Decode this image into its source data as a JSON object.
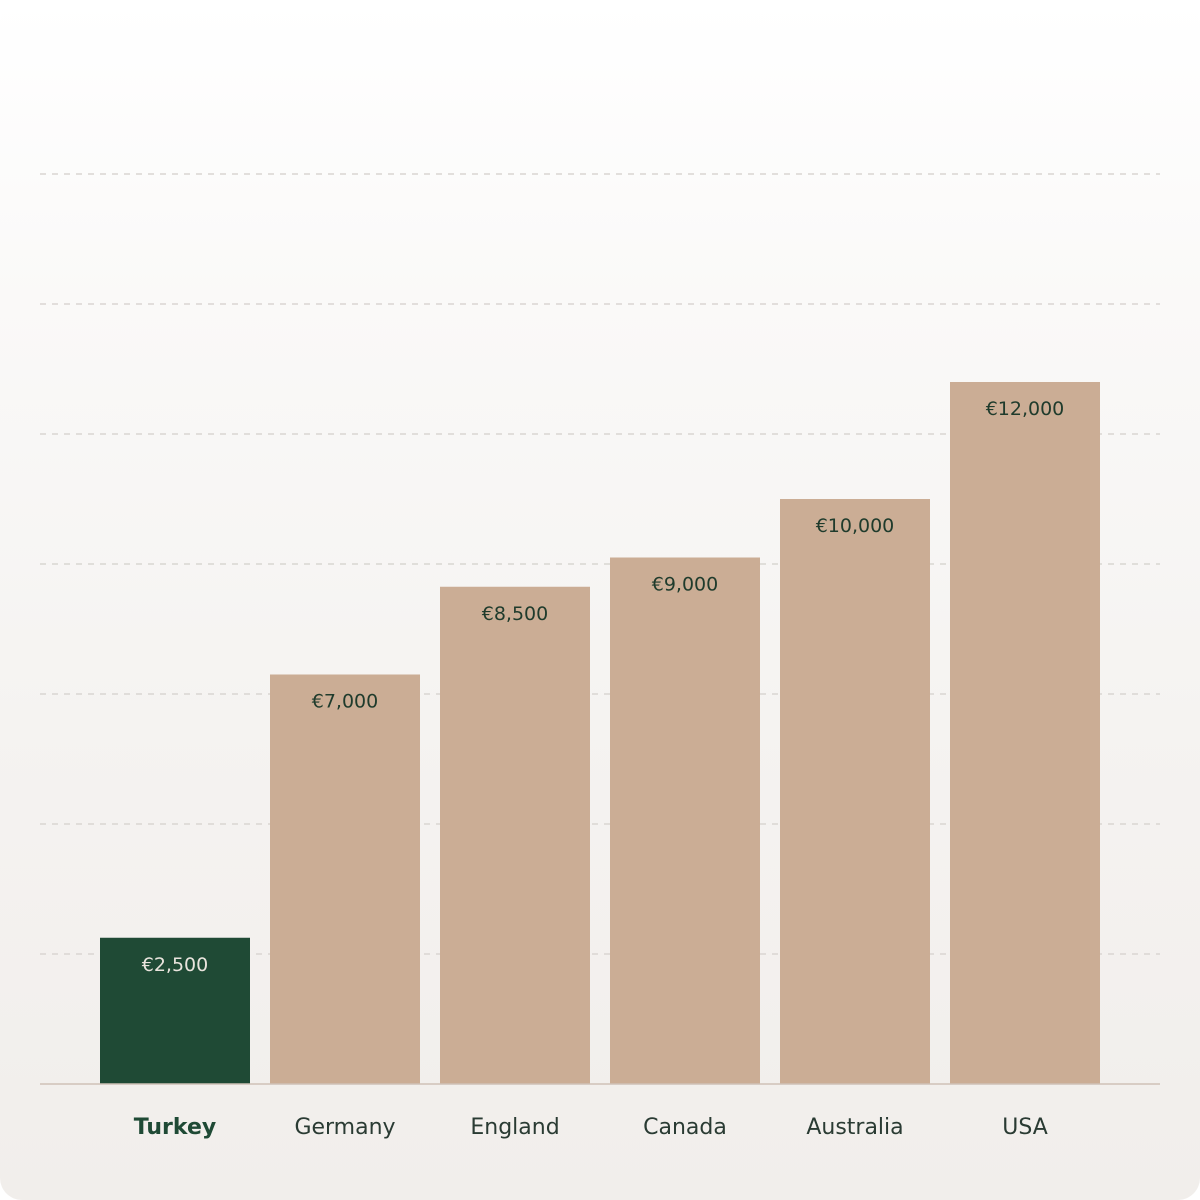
{
  "chart_data": {
    "type": "bar",
    "categories": [
      "Turkey",
      "Germany",
      "England",
      "Canada",
      "Australia",
      "USA"
    ],
    "values": [
      2500,
      7000,
      8500,
      9000,
      10000,
      12000
    ],
    "value_labels": [
      "€2,500",
      "€7,000",
      "€8,500",
      "€9,000",
      "€10,000",
      "€12,000"
    ],
    "highlight_category": "Turkey",
    "title": "",
    "xlabel": "",
    "ylabel": "",
    "ylim": [
      0,
      15750
    ],
    "grid": true,
    "colors": {
      "bar": "#cbad95",
      "highlight_bar": "#1f4a35"
    }
  }
}
